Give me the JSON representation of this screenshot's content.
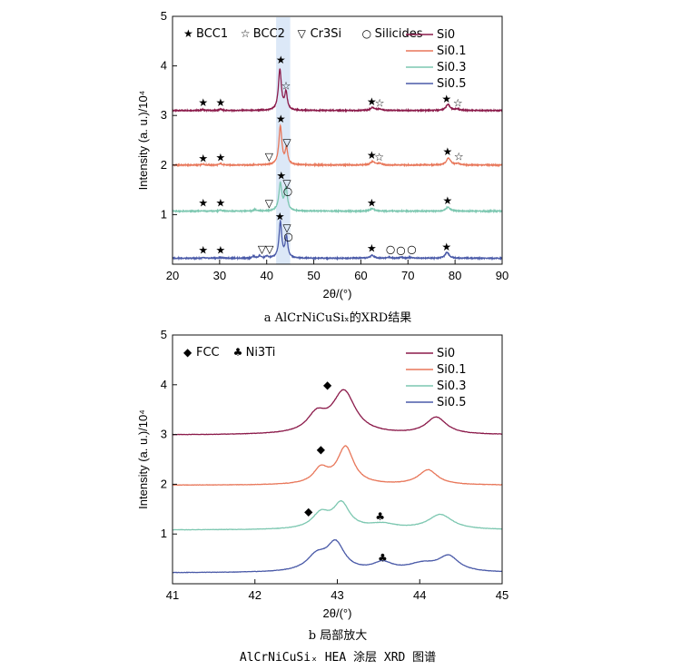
{
  "caption": "AlCrNiCuSiₓ HEA 涂层 XRD 图谱",
  "chart_data": [
    {
      "type": "line",
      "panel_caption": "a  AlCrNiCuSiₓ的XRD结果",
      "xlabel": "2θ/(°)",
      "ylabel": "Intensity (a. u.)/10⁴",
      "xlim": [
        20,
        90
      ],
      "ylim": [
        0,
        5
      ],
      "xticks": [
        20,
        30,
        40,
        50,
        60,
        70,
        80,
        90
      ],
      "yticks": [
        1,
        2,
        3,
        4,
        5
      ],
      "highlight_band": [
        42.0,
        45.0
      ],
      "phase_legend": [
        {
          "symbol": "★",
          "label": "BCC1"
        },
        {
          "symbol": "☆",
          "label": "BCC2"
        },
        {
          "symbol": "▽",
          "label": "Cr3Si"
        },
        {
          "symbol": "○",
          "label": "Silicides"
        }
      ],
      "series": [
        {
          "name": "Si0",
          "color": "#8b1a4a",
          "baseline": 3.1,
          "peaks": [
            [
              26.5,
              0.02,
              0.3
            ],
            [
              30.2,
              0.03,
              0.3
            ],
            [
              42.8,
              0.82,
              0.38
            ],
            [
              44.1,
              0.35,
              0.32
            ],
            [
              62.5,
              0.06,
              0.55
            ],
            [
              64.0,
              0.03,
              0.5
            ],
            [
              78.5,
              0.12,
              0.55
            ],
            [
              80.5,
              0.03,
              0.5
            ]
          ],
          "markers": [
            {
              "x": 26.5,
              "y": 3.26,
              "s": "★"
            },
            {
              "x": 30.2,
              "y": 3.26,
              "s": "★"
            },
            {
              "x": 43.0,
              "y": 4.12,
              "s": "★"
            },
            {
              "x": 44.1,
              "y": 3.6,
              "s": "☆"
            },
            {
              "x": 62.3,
              "y": 3.28,
              "s": "★"
            },
            {
              "x": 64.0,
              "y": 3.25,
              "s": "☆"
            },
            {
              "x": 78.2,
              "y": 3.33,
              "s": "★"
            },
            {
              "x": 80.6,
              "y": 3.25,
              "s": "☆"
            }
          ]
        },
        {
          "name": "Si0.1",
          "color": "#e8775a",
          "baseline": 2.0,
          "peaks": [
            [
              26.5,
              0.02,
              0.3
            ],
            [
              30.2,
              0.03,
              0.3
            ],
            [
              42.9,
              0.78,
              0.38
            ],
            [
              44.2,
              0.32,
              0.32
            ],
            [
              62.5,
              0.07,
              0.55
            ],
            [
              64.0,
              0.03,
              0.5
            ],
            [
              78.6,
              0.14,
              0.55
            ],
            [
              80.6,
              0.03,
              0.5
            ]
          ],
          "markers": [
            {
              "x": 26.5,
              "y": 2.13,
              "s": "★"
            },
            {
              "x": 30.2,
              "y": 2.15,
              "s": "★"
            },
            {
              "x": 40.5,
              "y": 2.17,
              "s": "▽"
            },
            {
              "x": 43.0,
              "y": 2.93,
              "s": "★"
            },
            {
              "x": 44.3,
              "y": 2.45,
              "s": "▽"
            },
            {
              "x": 62.3,
              "y": 2.2,
              "s": "★"
            },
            {
              "x": 63.9,
              "y": 2.16,
              "s": "☆"
            },
            {
              "x": 78.4,
              "y": 2.27,
              "s": "★"
            },
            {
              "x": 80.8,
              "y": 2.17,
              "s": "☆"
            }
          ]
        },
        {
          "name": "Si0.3",
          "color": "#7cc7b0",
          "baseline": 1.07,
          "peaks": [
            [
              26.5,
              0.01,
              0.3
            ],
            [
              30.2,
              0.02,
              0.3
            ],
            [
              37.5,
              0.03,
              0.3
            ],
            [
              42.9,
              0.55,
              0.38
            ],
            [
              44.1,
              0.45,
              0.35
            ],
            [
              62.4,
              0.05,
              0.55
            ],
            [
              78.5,
              0.08,
              0.55
            ]
          ],
          "markers": [
            {
              "x": 26.5,
              "y": 1.24,
              "s": "★"
            },
            {
              "x": 30.2,
              "y": 1.24,
              "s": "★"
            },
            {
              "x": 40.5,
              "y": 1.23,
              "s": "▽"
            },
            {
              "x": 43.1,
              "y": 1.79,
              "s": "★"
            },
            {
              "x": 44.3,
              "y": 1.63,
              "s": "▽"
            },
            {
              "x": 44.5,
              "y": 1.47,
              "s": "○"
            },
            {
              "x": 62.3,
              "y": 1.24,
              "s": "★"
            },
            {
              "x": 78.4,
              "y": 1.28,
              "s": "★"
            }
          ]
        },
        {
          "name": "Si0.5",
          "color": "#4a5aa8",
          "baseline": 0.12,
          "peaks": [
            [
              26.5,
              0.01,
              0.3
            ],
            [
              30.2,
              0.02,
              0.3
            ],
            [
              37.2,
              0.04,
              0.3
            ],
            [
              38.5,
              0.05,
              0.3
            ],
            [
              40.0,
              0.04,
              0.3
            ],
            [
              42.9,
              0.72,
              0.35
            ],
            [
              44.2,
              0.42,
              0.33
            ],
            [
              62.4,
              0.06,
              0.5
            ],
            [
              66.0,
              0.02,
              0.4
            ],
            [
              68.5,
              0.02,
              0.4
            ],
            [
              70.5,
              0.02,
              0.4
            ],
            [
              78.3,
              0.12,
              0.5
            ]
          ],
          "markers": [
            {
              "x": 26.5,
              "y": 0.28,
              "s": "★"
            },
            {
              "x": 30.2,
              "y": 0.28,
              "s": "★"
            },
            {
              "x": 39.0,
              "y": 0.3,
              "s": "▽"
            },
            {
              "x": 40.6,
              "y": 0.3,
              "s": "▽"
            },
            {
              "x": 42.8,
              "y": 0.96,
              "s": "★"
            },
            {
              "x": 44.3,
              "y": 0.73,
              "s": "▽"
            },
            {
              "x": 44.6,
              "y": 0.56,
              "s": "○"
            },
            {
              "x": 62.3,
              "y": 0.32,
              "s": "★"
            },
            {
              "x": 66.3,
              "y": 0.3,
              "s": "○"
            },
            {
              "x": 68.5,
              "y": 0.28,
              "s": "○"
            },
            {
              "x": 70.8,
              "y": 0.3,
              "s": "○"
            },
            {
              "x": 78.2,
              "y": 0.35,
              "s": "★"
            }
          ]
        }
      ]
    },
    {
      "type": "line",
      "panel_caption": "b  局部放大",
      "xlabel": "2θ/(°)",
      "ylabel": "Intensity (a. u.)/10⁴",
      "xlim": [
        41,
        45
      ],
      "ylim": [
        0,
        5
      ],
      "xticks": [
        41,
        42,
        43,
        44,
        45
      ],
      "yticks": [
        1,
        2,
        3,
        4,
        5
      ],
      "phase_legend": [
        {
          "symbol": "◆",
          "label": "FCC"
        },
        {
          "symbol": "♣",
          "label": "Ni3Ti"
        }
      ],
      "series": [
        {
          "name": "Si0",
          "color": "#8b1a4a",
          "baseline": 2.99,
          "peaks": [
            [
              42.75,
              0.35,
              0.14
            ],
            [
              43.08,
              0.85,
              0.17
            ],
            [
              44.2,
              0.34,
              0.15
            ]
          ],
          "markers": [
            {
              "x": 42.88,
              "y": 4.0,
              "s": "◆"
            }
          ]
        },
        {
          "name": "Si0.1",
          "color": "#e8775a",
          "baseline": 1.98,
          "peaks": [
            [
              42.8,
              0.3,
              0.11
            ],
            [
              43.1,
              0.75,
              0.12
            ],
            [
              44.1,
              0.3,
              0.14
            ]
          ],
          "markers": [
            {
              "x": 42.8,
              "y": 2.7,
              "s": "◆"
            }
          ]
        },
        {
          "name": "Si0.3",
          "color": "#7cc7b0",
          "baseline": 1.08,
          "peaks": [
            [
              42.8,
              0.3,
              0.13
            ],
            [
              43.05,
              0.5,
              0.12
            ],
            [
              43.55,
              0.1,
              0.2
            ],
            [
              44.25,
              0.3,
              0.18
            ]
          ],
          "markers": [
            {
              "x": 42.65,
              "y": 1.45,
              "s": "◆"
            },
            {
              "x": 43.52,
              "y": 1.35,
              "s": "♣"
            }
          ]
        },
        {
          "name": "Si0.5",
          "color": "#4a5aa8",
          "baseline": 0.22,
          "peaks": [
            [
              42.75,
              0.3,
              0.15
            ],
            [
              42.98,
              0.55,
              0.13
            ],
            [
              43.55,
              0.17,
              0.15
            ],
            [
              44.35,
              0.3,
              0.15
            ],
            [
              44.03,
              0.15,
              0.22
            ]
          ],
          "markers": [
            {
              "x": 43.55,
              "y": 0.52,
              "s": "♣"
            }
          ]
        }
      ]
    }
  ]
}
